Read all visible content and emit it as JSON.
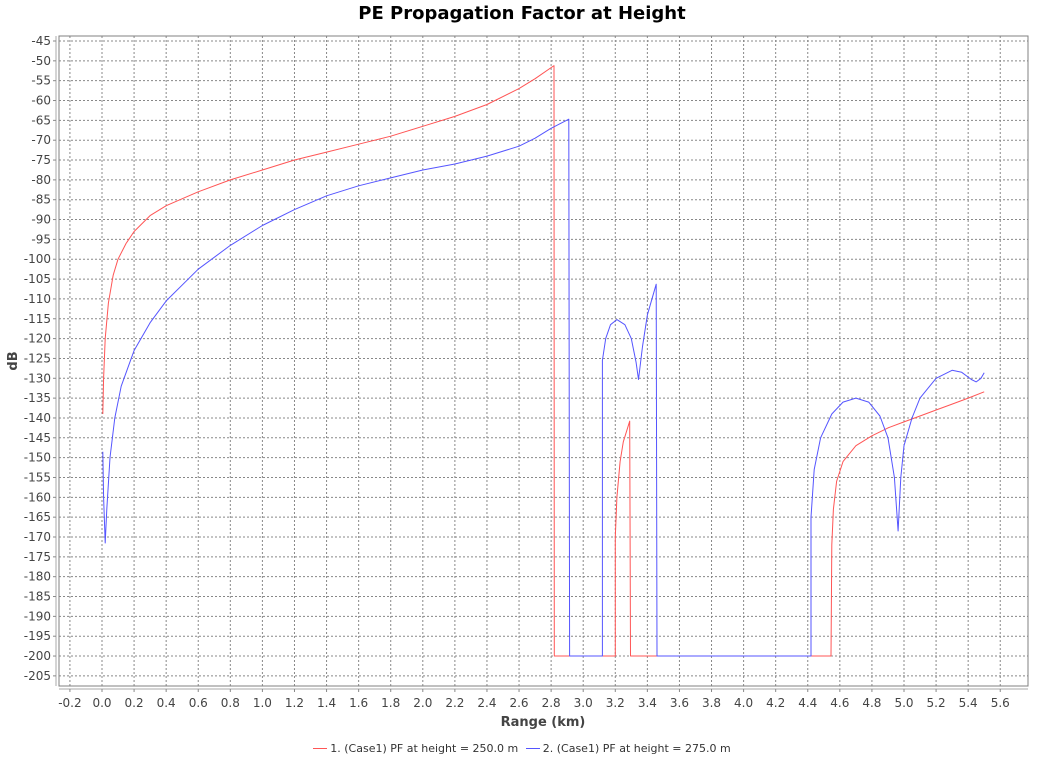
{
  "chart_data": {
    "type": "line",
    "title": "PE Propagation Factor at Height",
    "xlabel": "Range (km)",
    "ylabel": "dB",
    "xlim": [
      -0.25,
      5.77
    ],
    "ylim": [
      -207.5,
      -44
    ],
    "xticks": [
      -0.2,
      0.0,
      0.2,
      0.4,
      0.6,
      0.8,
      1.0,
      1.2,
      1.4,
      1.6,
      1.8,
      2.0,
      2.2,
      2.4,
      2.6,
      2.8,
      3.0,
      3.2,
      3.4,
      3.6,
      3.8,
      4.0,
      4.2,
      4.4,
      4.6,
      4.8,
      5.0,
      5.2,
      5.4,
      5.6
    ],
    "yticks": [
      -45,
      -50,
      -55,
      -60,
      -65,
      -70,
      -75,
      -80,
      -85,
      -90,
      -95,
      -100,
      -105,
      -110,
      -115,
      -120,
      -125,
      -130,
      -135,
      -140,
      -145,
      -150,
      -155,
      -160,
      -165,
      -170,
      -175,
      -180,
      -185,
      -190,
      -195,
      -200,
      -205
    ],
    "grid": true,
    "legend_position": "bottom",
    "series": [
      {
        "name": "1. (Case1) PF at height = 250.0 m",
        "color": "#ff5555",
        "points": [
          [
            0.005,
            -139
          ],
          [
            0.01,
            -130
          ],
          [
            0.02,
            -120
          ],
          [
            0.04,
            -111
          ],
          [
            0.07,
            -104
          ],
          [
            0.1,
            -100
          ],
          [
            0.15,
            -96
          ],
          [
            0.2,
            -93
          ],
          [
            0.3,
            -89
          ],
          [
            0.4,
            -86.5
          ],
          [
            0.6,
            -83
          ],
          [
            0.8,
            -80
          ],
          [
            1.0,
            -77.5
          ],
          [
            1.2,
            -75
          ],
          [
            1.4,
            -73
          ],
          [
            1.6,
            -71
          ],
          [
            1.8,
            -69
          ],
          [
            2.0,
            -66.5
          ],
          [
            2.2,
            -64
          ],
          [
            2.4,
            -61
          ],
          [
            2.6,
            -57
          ],
          [
            2.7,
            -54.5
          ],
          [
            2.818,
            -51.2
          ],
          [
            2.82,
            -200
          ],
          [
            3.2,
            -200
          ],
          [
            3.2,
            -170
          ],
          [
            3.21,
            -160
          ],
          [
            3.23,
            -151
          ],
          [
            3.25,
            -146
          ],
          [
            3.29,
            -140.8
          ],
          [
            3.295,
            -200
          ],
          [
            4.545,
            -200
          ],
          [
            4.55,
            -172
          ],
          [
            4.56,
            -163
          ],
          [
            4.58,
            -156
          ],
          [
            4.62,
            -151
          ],
          [
            4.7,
            -147
          ],
          [
            4.8,
            -144.5
          ],
          [
            4.9,
            -142.5
          ],
          [
            5.0,
            -141
          ],
          [
            5.1,
            -139.5
          ],
          [
            5.2,
            -138
          ],
          [
            5.3,
            -136.5
          ],
          [
            5.4,
            -135
          ],
          [
            5.5,
            -133.4
          ]
        ]
      },
      {
        "name": "2. (Case1) PF at height = 275.0 m",
        "color": "#5555ff",
        "points": [
          [
            0.005,
            -148.5
          ],
          [
            0.01,
            -160
          ],
          [
            0.02,
            -171.5
          ],
          [
            0.03,
            -163
          ],
          [
            0.05,
            -150
          ],
          [
            0.08,
            -140
          ],
          [
            0.12,
            -132
          ],
          [
            0.2,
            -123
          ],
          [
            0.3,
            -116
          ],
          [
            0.4,
            -110.5
          ],
          [
            0.6,
            -102.5
          ],
          [
            0.8,
            -96.5
          ],
          [
            1.0,
            -91.5
          ],
          [
            1.2,
            -87.5
          ],
          [
            1.4,
            -84
          ],
          [
            1.6,
            -81.5
          ],
          [
            1.8,
            -79.5
          ],
          [
            2.0,
            -77.5
          ],
          [
            2.2,
            -76
          ],
          [
            2.4,
            -74
          ],
          [
            2.6,
            -71.5
          ],
          [
            2.7,
            -69.5
          ],
          [
            2.8,
            -67
          ],
          [
            2.91,
            -64.7
          ],
          [
            2.915,
            -200
          ],
          [
            3.12,
            -200
          ],
          [
            3.12,
            -125.5
          ],
          [
            3.14,
            -120
          ],
          [
            3.17,
            -116.5
          ],
          [
            3.21,
            -115.2
          ],
          [
            3.26,
            -116.5
          ],
          [
            3.3,
            -120
          ],
          [
            3.33,
            -126
          ],
          [
            3.345,
            -130.3
          ],
          [
            3.37,
            -122
          ],
          [
            3.4,
            -114
          ],
          [
            3.455,
            -106.3
          ],
          [
            3.46,
            -200
          ],
          [
            4.42,
            -200
          ],
          [
            4.42,
            -165
          ],
          [
            4.44,
            -153
          ],
          [
            4.48,
            -145
          ],
          [
            4.55,
            -139
          ],
          [
            4.62,
            -136
          ],
          [
            4.7,
            -135
          ],
          [
            4.78,
            -136
          ],
          [
            4.85,
            -139.5
          ],
          [
            4.9,
            -145
          ],
          [
            4.94,
            -155
          ],
          [
            4.963,
            -168.5
          ],
          [
            4.98,
            -155
          ],
          [
            5.0,
            -147
          ],
          [
            5.05,
            -140
          ],
          [
            5.1,
            -135
          ],
          [
            5.2,
            -130
          ],
          [
            5.3,
            -128
          ],
          [
            5.36,
            -128.5
          ],
          [
            5.42,
            -130.3
          ],
          [
            5.45,
            -130.9
          ],
          [
            5.48,
            -130
          ],
          [
            5.5,
            -128.6
          ]
        ]
      }
    ]
  }
}
